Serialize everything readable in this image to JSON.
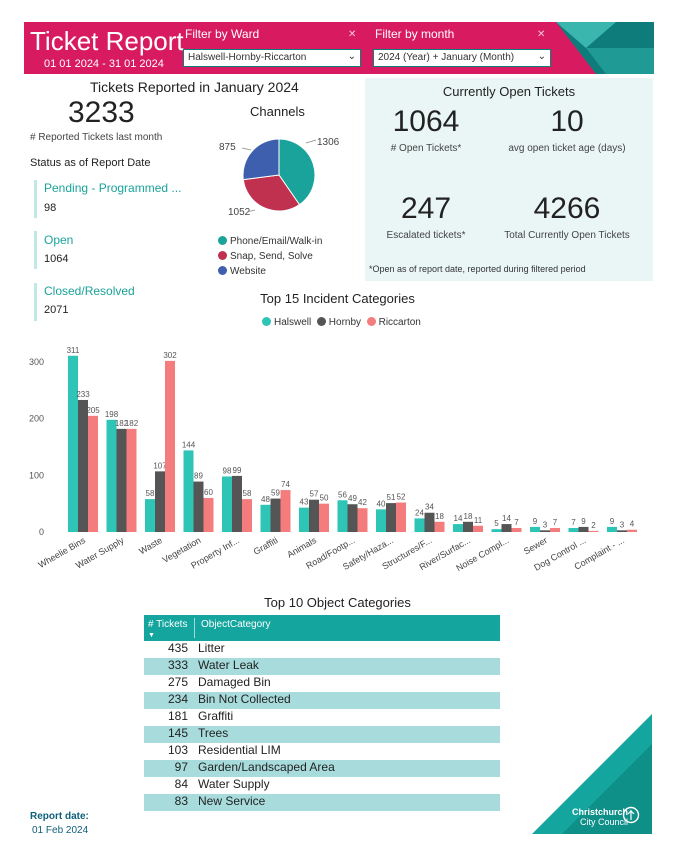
{
  "header": {
    "title": "Ticket Report",
    "date_range": "01 01 2024 - 31 01 2024",
    "ward_filter_label": "Filter by Ward",
    "ward_filter_value": "Halswell-Hornby-Riccarton",
    "month_filter_label": "Filter by month",
    "month_filter_value": "2024 (Year) + January (Month)",
    "colors": {
      "banner": "#d81b60",
      "accent": "#13a59e"
    }
  },
  "summary": {
    "heading": "Tickets Reported in January 2024",
    "total": "3233",
    "total_caption": "# Reported Tickets last month",
    "status_heading": "Status as of Report Date",
    "statuses": [
      {
        "label": "Pending - Programmed ...",
        "value": "98"
      },
      {
        "label": "Open",
        "value": "1064"
      },
      {
        "label": "Closed/Resolved",
        "value": "2071"
      }
    ]
  },
  "channels": {
    "title": "Channels",
    "slices": [
      {
        "label": "Phone/Email/Walk-in",
        "value": 1306,
        "display": "1306",
        "color": "#1aa39a"
      },
      {
        "label": "Snap, Send, Solve",
        "value": 1052,
        "display": "1052",
        "color": "#c0304f"
      },
      {
        "label": "Website",
        "value": 875,
        "display": "875",
        "color": "#3e5fae"
      }
    ]
  },
  "open_tickets": {
    "heading": "Currently Open Tickets",
    "open_count": "1064",
    "open_caption": "# Open Tickets*",
    "avg_age": "10",
    "avg_age_caption": "avg open ticket age (days)",
    "escalated": "247",
    "escalated_caption": "Escalated tickets*",
    "total_open": "4266",
    "total_open_caption": "Total Currently Open Tickets",
    "footnote": "*Open as of report date, reported during filtered period"
  },
  "chart_data": {
    "type": "bar",
    "title": "Top 15 Incident Categories",
    "categories": [
      "Wheelie Bins",
      "Water Supply",
      "Waste",
      "Vegetation",
      "Property Inf...",
      "Graffiti",
      "Animals",
      "Road/Footp...",
      "Safety/Haza...",
      "Structures/F...",
      "River/Surfac...",
      "Noise Compl...",
      "Sewer",
      "Dog Control ...",
      "Complaint - ..."
    ],
    "series": [
      {
        "name": "Halswell",
        "color": "#2ec4b6",
        "values": [
          311,
          198,
          58,
          144,
          98,
          48,
          43,
          56,
          40,
          24,
          14,
          5,
          9,
          7,
          9
        ]
      },
      {
        "name": "Hornby",
        "color": "#555555",
        "values": [
          233,
          182,
          107,
          89,
          99,
          59,
          57,
          49,
          51,
          34,
          18,
          14,
          3,
          9,
          3
        ]
      },
      {
        "name": "Riccarton",
        "color": "#f47c7c",
        "values": [
          205,
          182,
          302,
          60,
          58,
          74,
          50,
          42,
          52,
          18,
          11,
          7,
          7,
          2,
          4
        ]
      }
    ],
    "ylim": [
      0,
      330
    ],
    "yticks": [
      0,
      100,
      200,
      300
    ],
    "legend_position": "top-center"
  },
  "object_table": {
    "title": "Top 10 Object Categories",
    "col_count": "# Tickets",
    "col_category": "ObjectCategory",
    "rows": [
      {
        "count": "435",
        "category": "Litter"
      },
      {
        "count": "333",
        "category": "Water Leak"
      },
      {
        "count": "275",
        "category": "Damaged Bin"
      },
      {
        "count": "234",
        "category": "Bin Not Collected"
      },
      {
        "count": "181",
        "category": "Graffiti"
      },
      {
        "count": "145",
        "category": "Trees"
      },
      {
        "count": "103",
        "category": "Residential LIM"
      },
      {
        "count": "97",
        "category": "Garden/Landscaped Area"
      },
      {
        "count": "84",
        "category": "Water Supply"
      },
      {
        "count": "83",
        "category": "New Service"
      }
    ]
  },
  "footer": {
    "report_date_label": "Report date:",
    "report_date": "01 Feb 2024",
    "logo_text_1": "Christchurch",
    "logo_text_2": "City Council"
  }
}
